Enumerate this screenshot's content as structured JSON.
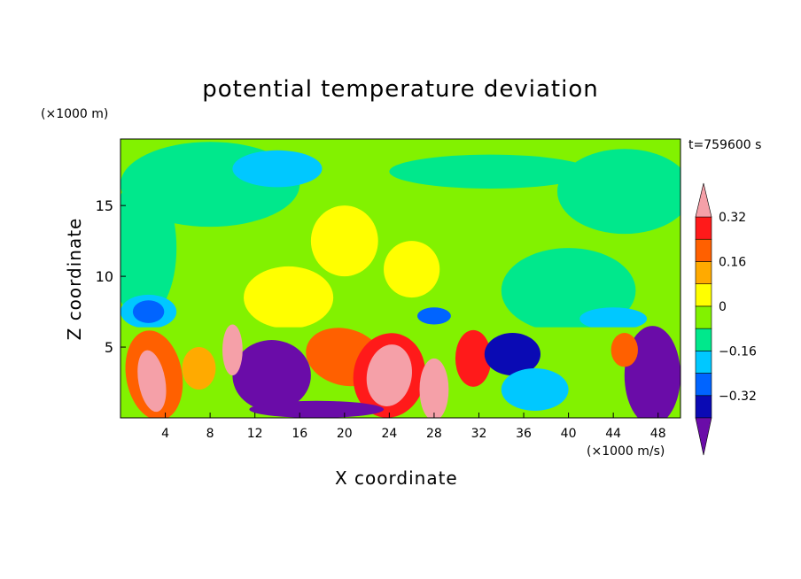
{
  "chart_data": {
    "type": "heatmap",
    "title": "potential temperature deviation",
    "xlabel": "X coordinate",
    "ylabel": "Z coordinate",
    "x_unit": "(×1000 m/s)",
    "y_unit": "(×1000 m)",
    "time_label": "t=759600 s",
    "xlim": [
      0,
      50
    ],
    "ylim": [
      0,
      19.7
    ],
    "x_ticks": [
      4,
      8,
      12,
      16,
      20,
      24,
      28,
      32,
      36,
      40,
      44,
      48
    ],
    "y_ticks": [
      5,
      10,
      15
    ],
    "colorbar": {
      "levels": [
        -0.48,
        -0.4,
        -0.32,
        -0.24,
        -0.16,
        -0.08,
        0,
        0.08,
        0.16,
        0.24,
        0.32,
        0.4
      ],
      "tick_labels": [
        "0.32",
        "0.16",
        "0",
        "−0.16",
        "−0.32"
      ],
      "tick_values": [
        0.32,
        0.16,
        0,
        -0.16,
        -0.32
      ],
      "colors": [
        "#6a0ca8",
        "#0a0ab4",
        "#0064ff",
        "#00c8ff",
        "#00e88c",
        "#82f200",
        "#ffff00",
        "#ffaa00",
        "#ff6000",
        "#ff1a1a",
        "#f5a0a8"
      ],
      "extend": "both"
    }
  }
}
